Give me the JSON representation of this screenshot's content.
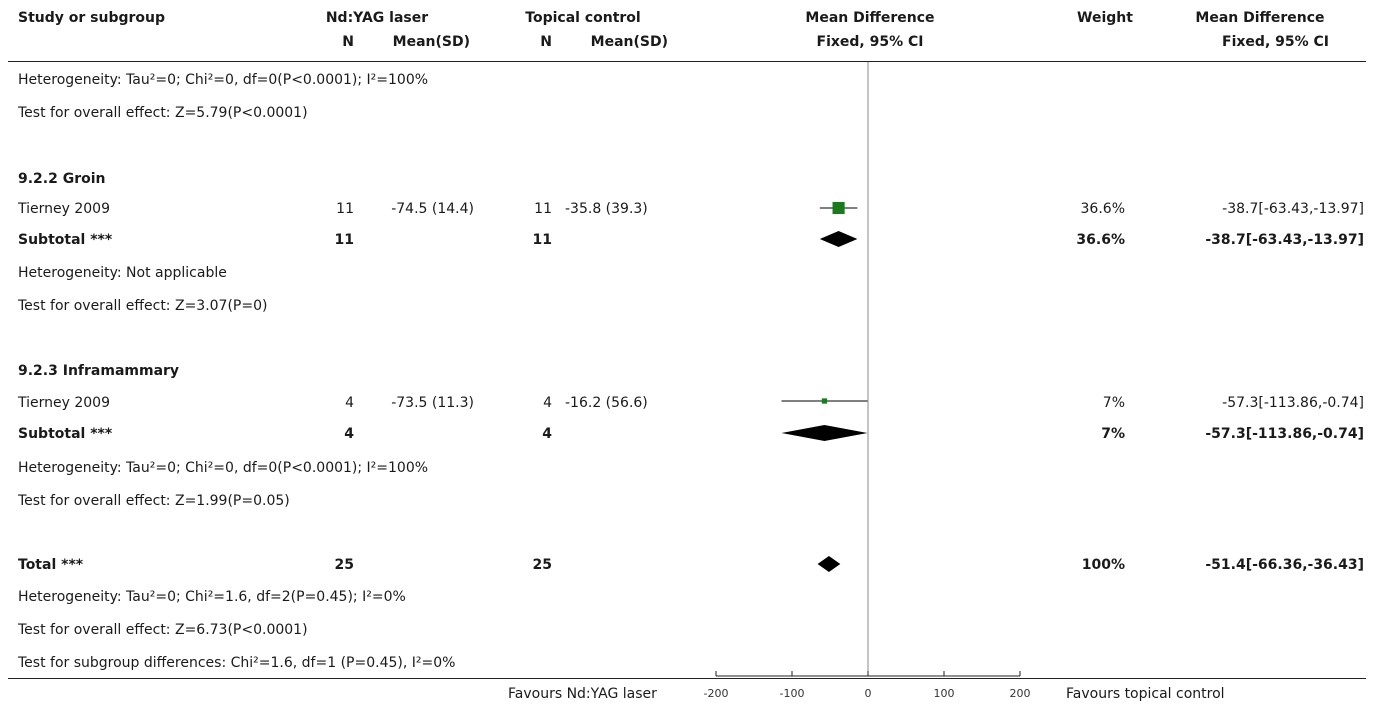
{
  "header": {
    "study": "Study or subgroup",
    "exp_group": "Nd:YAG laser",
    "ctrl_group": "Topical control",
    "md": "Mean Difference",
    "weight": "Weight",
    "md_right": "Mean Difference",
    "n": "N",
    "mean_sd": "Mean(SD)",
    "method": "Fixed, 95% CI",
    "method_right": "Fixed, 95% CI"
  },
  "rows": [
    {
      "study": "Heterogeneity: Tau²=0; Chi²=0, df=0(P<0.0001); I²=100%"
    },
    {
      "study": "Test for overall effect: Z=5.79(P<0.0001)"
    },
    {
      "study": "9.2.2 Groin",
      "bold": true
    },
    {
      "study": "Tierney 2009",
      "n1": "11",
      "ms1": "-74.5 (14.4)",
      "n2": "11",
      "ms2": "-35.8 (39.3)",
      "weight": "36.6%",
      "ci": "-38.7[-63.43,-13.97]"
    },
    {
      "study": "Subtotal ***",
      "bold": true,
      "n1": "11",
      "n2": "11",
      "weight": "36.6%",
      "ci": "-38.7[-63.43,-13.97]"
    },
    {
      "study": "Heterogeneity: Not applicable"
    },
    {
      "study": "Test for overall effect: Z=3.07(P=0)"
    },
    {
      "study": "9.2.3 Inframammary",
      "bold": true
    },
    {
      "study": "Tierney 2009",
      "n1": "4",
      "ms1": "-73.5 (11.3)",
      "n2": "4",
      "ms2": "-16.2 (56.6)",
      "weight": "7%",
      "ci": "-57.3[-113.86,-0.74]"
    },
    {
      "study": "Subtotal ***",
      "bold": true,
      "n1": "4",
      "n2": "4",
      "weight": "7%",
      "ci": "-57.3[-113.86,-0.74]"
    },
    {
      "study": "Heterogeneity: Tau²=0; Chi²=0, df=0(P<0.0001); I²=100%"
    },
    {
      "study": "Test for overall effect: Z=1.99(P=0.05)"
    },
    {
      "study": "Total ***",
      "bold": true,
      "n1": "25",
      "n2": "25",
      "weight": "100%",
      "ci": "-51.4[-66.36,-36.43]"
    },
    {
      "study": "Heterogeneity: Tau²=0; Chi²=1.6, df=2(P=0.45); I²=0%"
    },
    {
      "study": "Test for overall effect: Z=6.73(P<0.0001)"
    },
    {
      "study": "Test for subgroup differences: Chi²=1.6, df=1 (P=0.45), I²=0%"
    }
  ],
  "footer": {
    "favours_left": "Favours Nd:YAG laser",
    "favours_right": "Favours topical control"
  },
  "colors": {
    "study_marker": "#1b7a1b",
    "summary_marker": "#000000"
  },
  "chart_data": {
    "type": "forest",
    "xlim": [
      -200,
      200
    ],
    "ticks": [
      -200,
      -100,
      0,
      100,
      200
    ],
    "tick_labels": [
      "-200",
      "-100",
      "0",
      "100",
      "200"
    ],
    "studies": [
      {
        "label": "Tierney 2009",
        "subgroup": "9.2.2 Groin",
        "md": -38.7,
        "lo": -63.43,
        "hi": -13.97,
        "weight": 36.6
      },
      {
        "label": "Tierney 2009",
        "subgroup": "9.2.3 Inframammary",
        "md": -57.3,
        "lo": -113.86,
        "hi": -0.74,
        "weight": 7
      }
    ],
    "summaries": [
      {
        "label": "Subtotal ***",
        "subgroup": "9.2.2 Groin",
        "md": -38.7,
        "lo": -63.43,
        "hi": -13.97
      },
      {
        "label": "Subtotal ***",
        "subgroup": "9.2.3 Inframammary",
        "md": -57.3,
        "lo": -113.86,
        "hi": -0.74
      },
      {
        "label": "Total ***",
        "md": -51.4,
        "lo": -66.36,
        "hi": -36.43
      }
    ]
  }
}
